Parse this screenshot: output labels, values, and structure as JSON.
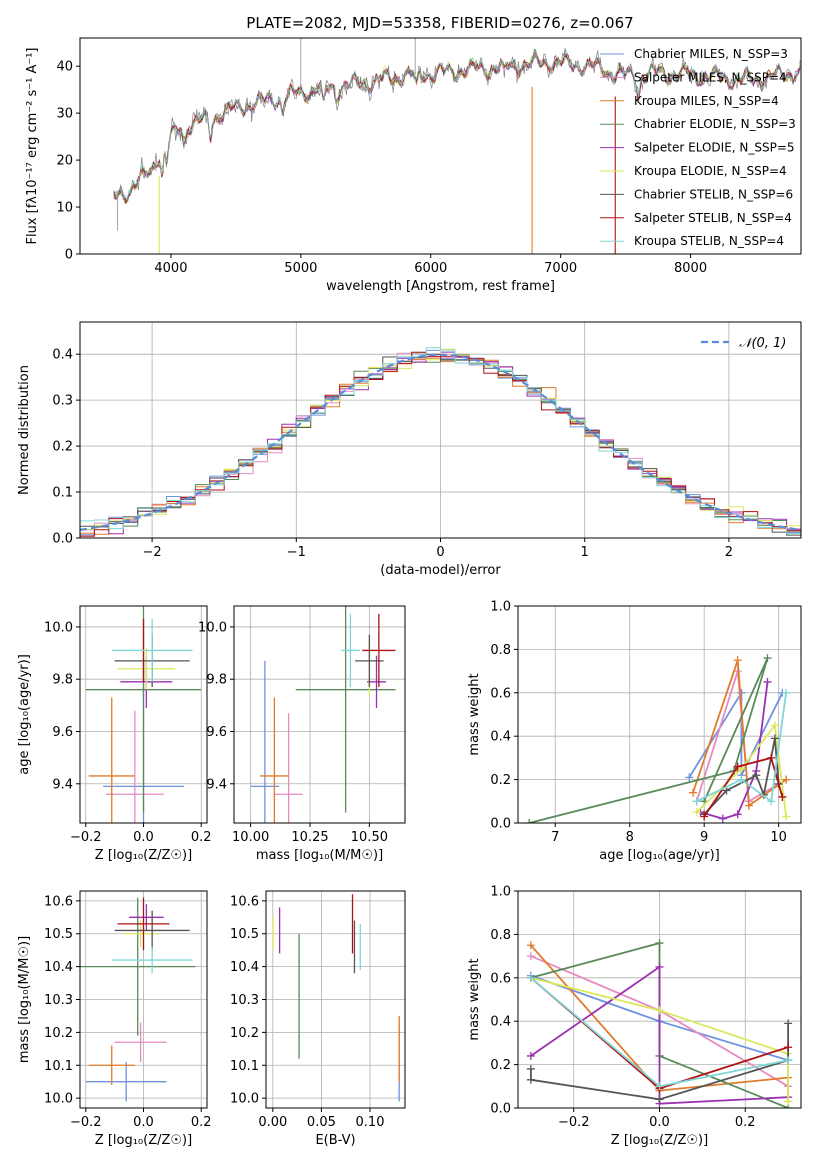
{
  "colors": {
    "chabrier_miles": "#6f93e0",
    "salpeter_miles": "#e78ac3",
    "kroupa_miles": "#e07b2a",
    "chabrier_elodie": "#5a8a5a",
    "salpeter_elodie": "#9b30b0",
    "kroupa_elodie": "#dce85a",
    "chabrier_stelib": "#555555",
    "salpeter_stelib": "#b01010",
    "kroupa_stelib": "#7fd6d6",
    "normal": "#5b8bd6"
  },
  "chart_data": [
    {
      "id": "spectrum",
      "type": "line",
      "title": "PLATE=2082, MJD=53358, FIBERID=0276, z=0.067",
      "xlabel": "wavelength [Angstrom, rest frame]",
      "ylabel": "Flux [fλ10⁻¹⁷ erg cm⁻² s⁻¹ A⁻¹]",
      "xlim": [
        3300,
        8850
      ],
      "ylim": [
        0,
        46
      ],
      "xticks": [
        4000,
        5000,
        6000,
        7000,
        8000
      ],
      "yticks": [
        0,
        10,
        20,
        30,
        40
      ],
      "continuum": {
        "x": [
          3560,
          3700,
          3850,
          3950,
          4100,
          4300,
          4500,
          4800,
          5100,
          5400,
          5800,
          6200,
          6600,
          6900,
          7200,
          7500,
          7800,
          8100,
          8400,
          8700,
          8850
        ],
        "y": [
          12,
          14,
          18,
          24,
          27,
          29,
          31,
          33,
          35,
          36,
          38,
          39,
          40,
          41,
          40,
          38,
          38.5,
          38,
          37,
          38,
          39
        ]
      },
      "series": [
        {
          "name": "Chabrier MILES, N_SSP=3",
          "color_key": "chabrier_miles"
        },
        {
          "name": "Salpeter MILES, N_SSP=4",
          "color_key": "salpeter_miles"
        },
        {
          "name": "Kroupa MILES, N_SSP=4",
          "color_key": "kroupa_miles"
        },
        {
          "name": "Chabrier ELODIE, N_SSP=3",
          "color_key": "chabrier_elodie"
        },
        {
          "name": "Salpeter ELODIE, N_SSP=5",
          "color_key": "salpeter_elodie"
        },
        {
          "name": "Kroupa ELODIE, N_SSP=4",
          "color_key": "kroupa_elodie"
        },
        {
          "name": "Chabrier STELIB, N_SSP=6",
          "color_key": "chabrier_stelib"
        },
        {
          "name": "Salpeter STELIB, N_SSP=4",
          "color_key": "salpeter_stelib"
        },
        {
          "name": "Kroupa STELIB, N_SSP=4",
          "color_key": "kroupa_stelib"
        }
      ],
      "legend_placement": "upper-right"
    },
    {
      "id": "residuals",
      "type": "line",
      "xlabel": "(data-model)/error",
      "ylabel": "Normed distribution",
      "xlim": [
        -2.5,
        2.5
      ],
      "ylim": [
        0,
        0.47
      ],
      "xticks": [
        -2,
        -1,
        0,
        1,
        2
      ],
      "yticks": [
        0.0,
        0.1,
        0.2,
        0.3,
        0.4
      ],
      "legend": "𝒩(0, 1)",
      "legend_placement": "upper-right",
      "grid": true,
      "bin_width": 0.1
    },
    {
      "id": "age_vs_z",
      "type": "scatter",
      "xlabel": "Z [log₁₀(Z/Z☉)]",
      "ylabel": "age  [log₁₀(age/yr)]",
      "xlim": [
        -0.22,
        0.22
      ],
      "ylim": [
        9.25,
        10.08
      ],
      "xticks": [
        -0.2,
        0.0,
        0.2
      ],
      "yticks": [
        9.4,
        9.6,
        9.8,
        10.0
      ],
      "points": [
        {
          "c": "chabrier_miles",
          "x": 0.0,
          "y": 9.39,
          "xe": 0.14,
          "ye": 0.48
        },
        {
          "c": "salpeter_miles",
          "x": -0.03,
          "y": 9.36,
          "xe": 0.1,
          "ye": 0.32
        },
        {
          "c": "kroupa_miles",
          "x": -0.11,
          "y": 9.43,
          "xe": 0.08,
          "ye": 0.3
        },
        {
          "c": "chabrier_elodie",
          "x": 0.0,
          "y": 9.76,
          "xe": 0.2,
          "ye": 0.47
        },
        {
          "c": "salpeter_elodie",
          "x": 0.01,
          "y": 9.79,
          "xe": 0.09,
          "ye": 0.1
        },
        {
          "c": "kroupa_elodie",
          "x": 0.01,
          "y": 9.84,
          "xe": 0.1,
          "ye": 0.08
        },
        {
          "c": "chabrier_stelib",
          "x": 0.03,
          "y": 9.87,
          "xe": 0.13,
          "ye": 0.1
        },
        {
          "c": "salpeter_stelib",
          "x": 0.0,
          "y": 9.91,
          "xe": 0.0,
          "ye": 0.12
        },
        {
          "c": "kroupa_stelib",
          "x": 0.03,
          "y": 9.91,
          "xe": 0.14,
          "ye": 0.12
        }
      ]
    },
    {
      "id": "age_vs_mass",
      "type": "scatter",
      "xlabel": "mass [log₁₀(M/M☉)]",
      "ylabel": "",
      "xlim": [
        9.93,
        10.65
      ],
      "ylim": [
        9.25,
        10.08
      ],
      "xticks": [
        10.0,
        10.25,
        10.5
      ],
      "yticks": [
        9.4,
        9.6,
        9.8,
        10.0
      ],
      "points": [
        {
          "c": "chabrier_miles",
          "x": 10.06,
          "y": 9.39,
          "xe": 0.06,
          "ye": 0.48
        },
        {
          "c": "salpeter_miles",
          "x": 10.16,
          "y": 9.36,
          "xe": 0.06,
          "ye": 0.31
        },
        {
          "c": "kroupa_miles",
          "x": 10.1,
          "y": 9.43,
          "xe": 0.06,
          "ye": 0.3
        },
        {
          "c": "chabrier_elodie",
          "x": 10.4,
          "y": 9.76,
          "xe": 0.21,
          "ye": 0.47
        },
        {
          "c": "salpeter_elodie",
          "x": 10.53,
          "y": 9.79,
          "xe": 0.04,
          "ye": 0.1
        },
        {
          "c": "kroupa_elodie",
          "x": 10.5,
          "y": 9.84,
          "xe": 0.0,
          "ye": 0.1
        },
        {
          "c": "chabrier_stelib",
          "x": 10.5,
          "y": 9.87,
          "xe": 0.06,
          "ye": 0.1
        },
        {
          "c": "salpeter_stelib",
          "x": 10.54,
          "y": 9.91,
          "xe": 0.07,
          "ye": 0.14
        },
        {
          "c": "kroupa_stelib",
          "x": 10.42,
          "y": 9.91,
          "xe": 0.04,
          "ye": 0.14
        }
      ]
    },
    {
      "id": "weight_vs_age",
      "type": "line",
      "xlabel": "age  [log₁₀(age/yr)]",
      "ylabel": "mass weight",
      "xlim": [
        6.5,
        10.3
      ],
      "ylim": [
        0.0,
        1.0
      ],
      "xticks": [
        7,
        8,
        9,
        10
      ],
      "yticks": [
        0.0,
        0.2,
        0.4,
        0.6,
        0.8,
        1.0
      ],
      "grid": true,
      "series": [
        {
          "c": "chabrier_miles",
          "x": [
            8.8,
            9.5,
            9.5,
            10.05
          ],
          "y": [
            0.21,
            0.6,
            0.22,
            0.6
          ]
        },
        {
          "c": "salpeter_miles",
          "x": [
            8.9,
            9.45,
            9.6,
            10.1
          ],
          "y": [
            0.1,
            0.7,
            0.1,
            0.2
          ]
        },
        {
          "c": "kroupa_miles",
          "x": [
            8.85,
            9.45,
            9.6,
            10.1
          ],
          "y": [
            0.14,
            0.75,
            0.08,
            0.2
          ]
        },
        {
          "c": "chabrier_elodie",
          "x": [
            6.65,
            9.4,
            9.85,
            9.0
          ],
          "y": [
            0.0,
            0.24,
            0.76,
            0.1
          ]
        },
        {
          "c": "salpeter_elodie",
          "x": [
            8.95,
            9.25,
            9.45,
            9.7,
            9.85
          ],
          "y": [
            0.05,
            0.02,
            0.04,
            0.24,
            0.65
          ]
        },
        {
          "c": "kroupa_elodie",
          "x": [
            8.9,
            9.5,
            9.95,
            10.1
          ],
          "y": [
            0.05,
            0.25,
            0.45,
            0.03
          ]
        },
        {
          "c": "chabrier_stelib",
          "x": [
            9.0,
            9.3,
            9.7,
            9.8,
            9.95,
            10.0
          ],
          "y": [
            0.04,
            0.15,
            0.22,
            0.13,
            0.39,
            0.18
          ]
        },
        {
          "c": "salpeter_stelib",
          "x": [
            9.0,
            9.45,
            9.9,
            10.05
          ],
          "y": [
            0.03,
            0.26,
            0.3,
            0.12
          ]
        },
        {
          "c": "kroupa_stelib",
          "x": [
            8.9,
            9.5,
            9.9,
            10.1
          ],
          "y": [
            0.1,
            0.2,
            0.1,
            0.6
          ]
        }
      ]
    },
    {
      "id": "mass_vs_z",
      "type": "scatter",
      "xlabel": "Z [log₁₀(Z/Z☉)]",
      "ylabel": "mass [log₁₀(M/M☉)]",
      "xlim": [
        -0.22,
        0.22
      ],
      "ylim": [
        9.97,
        10.63
      ],
      "xticks": [
        -0.2,
        0.0,
        0.2
      ],
      "yticks": [
        10.0,
        10.1,
        10.2,
        10.3,
        10.4,
        10.5,
        10.6
      ],
      "points": [
        {
          "c": "chabrier_miles",
          "x": -0.06,
          "y": 10.05,
          "xe": 0.14,
          "ye": 0.06
        },
        {
          "c": "salpeter_miles",
          "x": -0.01,
          "y": 10.17,
          "xe": 0.09,
          "ye": 0.06
        },
        {
          "c": "kroupa_miles",
          "x": -0.11,
          "y": 10.1,
          "xe": 0.08,
          "ye": 0.06
        },
        {
          "c": "chabrier_elodie",
          "x": -0.02,
          "y": 10.4,
          "xe": 0.2,
          "ye": 0.21
        },
        {
          "c": "salpeter_elodie",
          "x": 0.01,
          "y": 10.55,
          "xe": 0.06,
          "ye": 0.04
        },
        {
          "c": "kroupa_elodie",
          "x": -0.01,
          "y": 10.5,
          "xe": 0.06,
          "ye": 0.04
        },
        {
          "c": "chabrier_stelib",
          "x": 0.03,
          "y": 10.51,
          "xe": 0.13,
          "ye": 0.06
        },
        {
          "c": "salpeter_stelib",
          "x": 0.0,
          "y": 10.53,
          "xe": 0.09,
          "ye": 0.08
        },
        {
          "c": "kroupa_stelib",
          "x": 0.03,
          "y": 10.42,
          "xe": 0.14,
          "ye": 0.04
        }
      ]
    },
    {
      "id": "mass_vs_ebv",
      "type": "scatter",
      "xlabel": "E(B-V)",
      "ylabel": "",
      "xlim": [
        -0.007,
        0.136
      ],
      "ylim": [
        9.97,
        10.63
      ],
      "xticks": [
        0.0,
        0.05,
        0.1
      ],
      "yticks": [
        10.0,
        10.1,
        10.2,
        10.3,
        10.4,
        10.5,
        10.6
      ],
      "points": [
        {
          "c": "chabrier_miles",
          "x": 0.13,
          "y": 10.05,
          "xe": 0.0,
          "ye": 0.06
        },
        {
          "c": "salpeter_miles",
          "x": 0.13,
          "y": 10.17,
          "xe": 0.0,
          "ye": 0.06
        },
        {
          "c": "kroupa_miles",
          "x": 0.13,
          "y": 10.15,
          "xe": 0.0,
          "ye": 0.1
        },
        {
          "c": "chabrier_elodie",
          "x": 0.027,
          "y": 10.31,
          "xe": 0.0,
          "ye": 0.19
        },
        {
          "c": "salpeter_elodie",
          "x": 0.007,
          "y": 10.51,
          "xe": 0.0,
          "ye": 0.07
        },
        {
          "c": "kroupa_elodie",
          "x": 0.0,
          "y": 10.5,
          "xe": 0.0,
          "ye": 0.05
        },
        {
          "c": "chabrier_stelib",
          "x": 0.084,
          "y": 10.46,
          "xe": 0.0,
          "ye": 0.08
        },
        {
          "c": "salpeter_stelib",
          "x": 0.082,
          "y": 10.53,
          "xe": 0.0,
          "ye": 0.09
        },
        {
          "c": "kroupa_stelib",
          "x": 0.09,
          "y": 10.46,
          "xe": 0.0,
          "ye": 0.07
        }
      ]
    },
    {
      "id": "weight_vs_z",
      "type": "line",
      "xlabel": "Z [log₁₀(Z/Z☉)]",
      "ylabel": "mass weight",
      "xlim": [
        -0.33,
        0.33
      ],
      "ylim": [
        0.0,
        1.0
      ],
      "xticks": [
        -0.2,
        0.0,
        0.2
      ],
      "yticks": [
        0.0,
        0.2,
        0.4,
        0.6,
        0.8,
        1.0
      ],
      "grid": true,
      "series": [
        {
          "c": "chabrier_miles",
          "x": [
            -0.3,
            0.0,
            0.3,
            0.3
          ],
          "y": [
            0.61,
            0.4,
            0.22,
            0.1
          ]
        },
        {
          "c": "salpeter_miles",
          "x": [
            -0.3,
            0.0,
            0.3,
            0.3
          ],
          "y": [
            0.7,
            0.45,
            0.1,
            0.05
          ]
        },
        {
          "c": "kroupa_miles",
          "x": [
            -0.3,
            0.0,
            0.3,
            0.3
          ],
          "y": [
            0.75,
            0.08,
            0.14,
            0.03
          ]
        },
        {
          "c": "chabrier_elodie",
          "x": [
            -0.3,
            0.0,
            0.0,
            0.3
          ],
          "y": [
            0.6,
            0.76,
            0.24,
            0.0
          ]
        },
        {
          "c": "salpeter_elodie",
          "x": [
            -0.3,
            0.0,
            0.0,
            0.3
          ],
          "y": [
            0.24,
            0.65,
            0.02,
            0.05
          ]
        },
        {
          "c": "kroupa_elodie",
          "x": [
            -0.3,
            0.0,
            0.3,
            0.3
          ],
          "y": [
            0.6,
            0.45,
            0.25,
            0.03
          ]
        },
        {
          "c": "chabrier_stelib",
          "x": [
            -0.3,
            -0.3,
            0.0,
            0.3,
            0.3
          ],
          "y": [
            0.18,
            0.13,
            0.04,
            0.22,
            0.39
          ]
        },
        {
          "c": "salpeter_stelib",
          "x": [
            -0.3,
            0.0,
            0.3
          ],
          "y": [
            0.6,
            0.09,
            0.28
          ]
        },
        {
          "c": "kroupa_stelib",
          "x": [
            -0.3,
            0.0,
            0.3
          ],
          "y": [
            0.6,
            0.1,
            0.22
          ]
        }
      ]
    }
  ]
}
